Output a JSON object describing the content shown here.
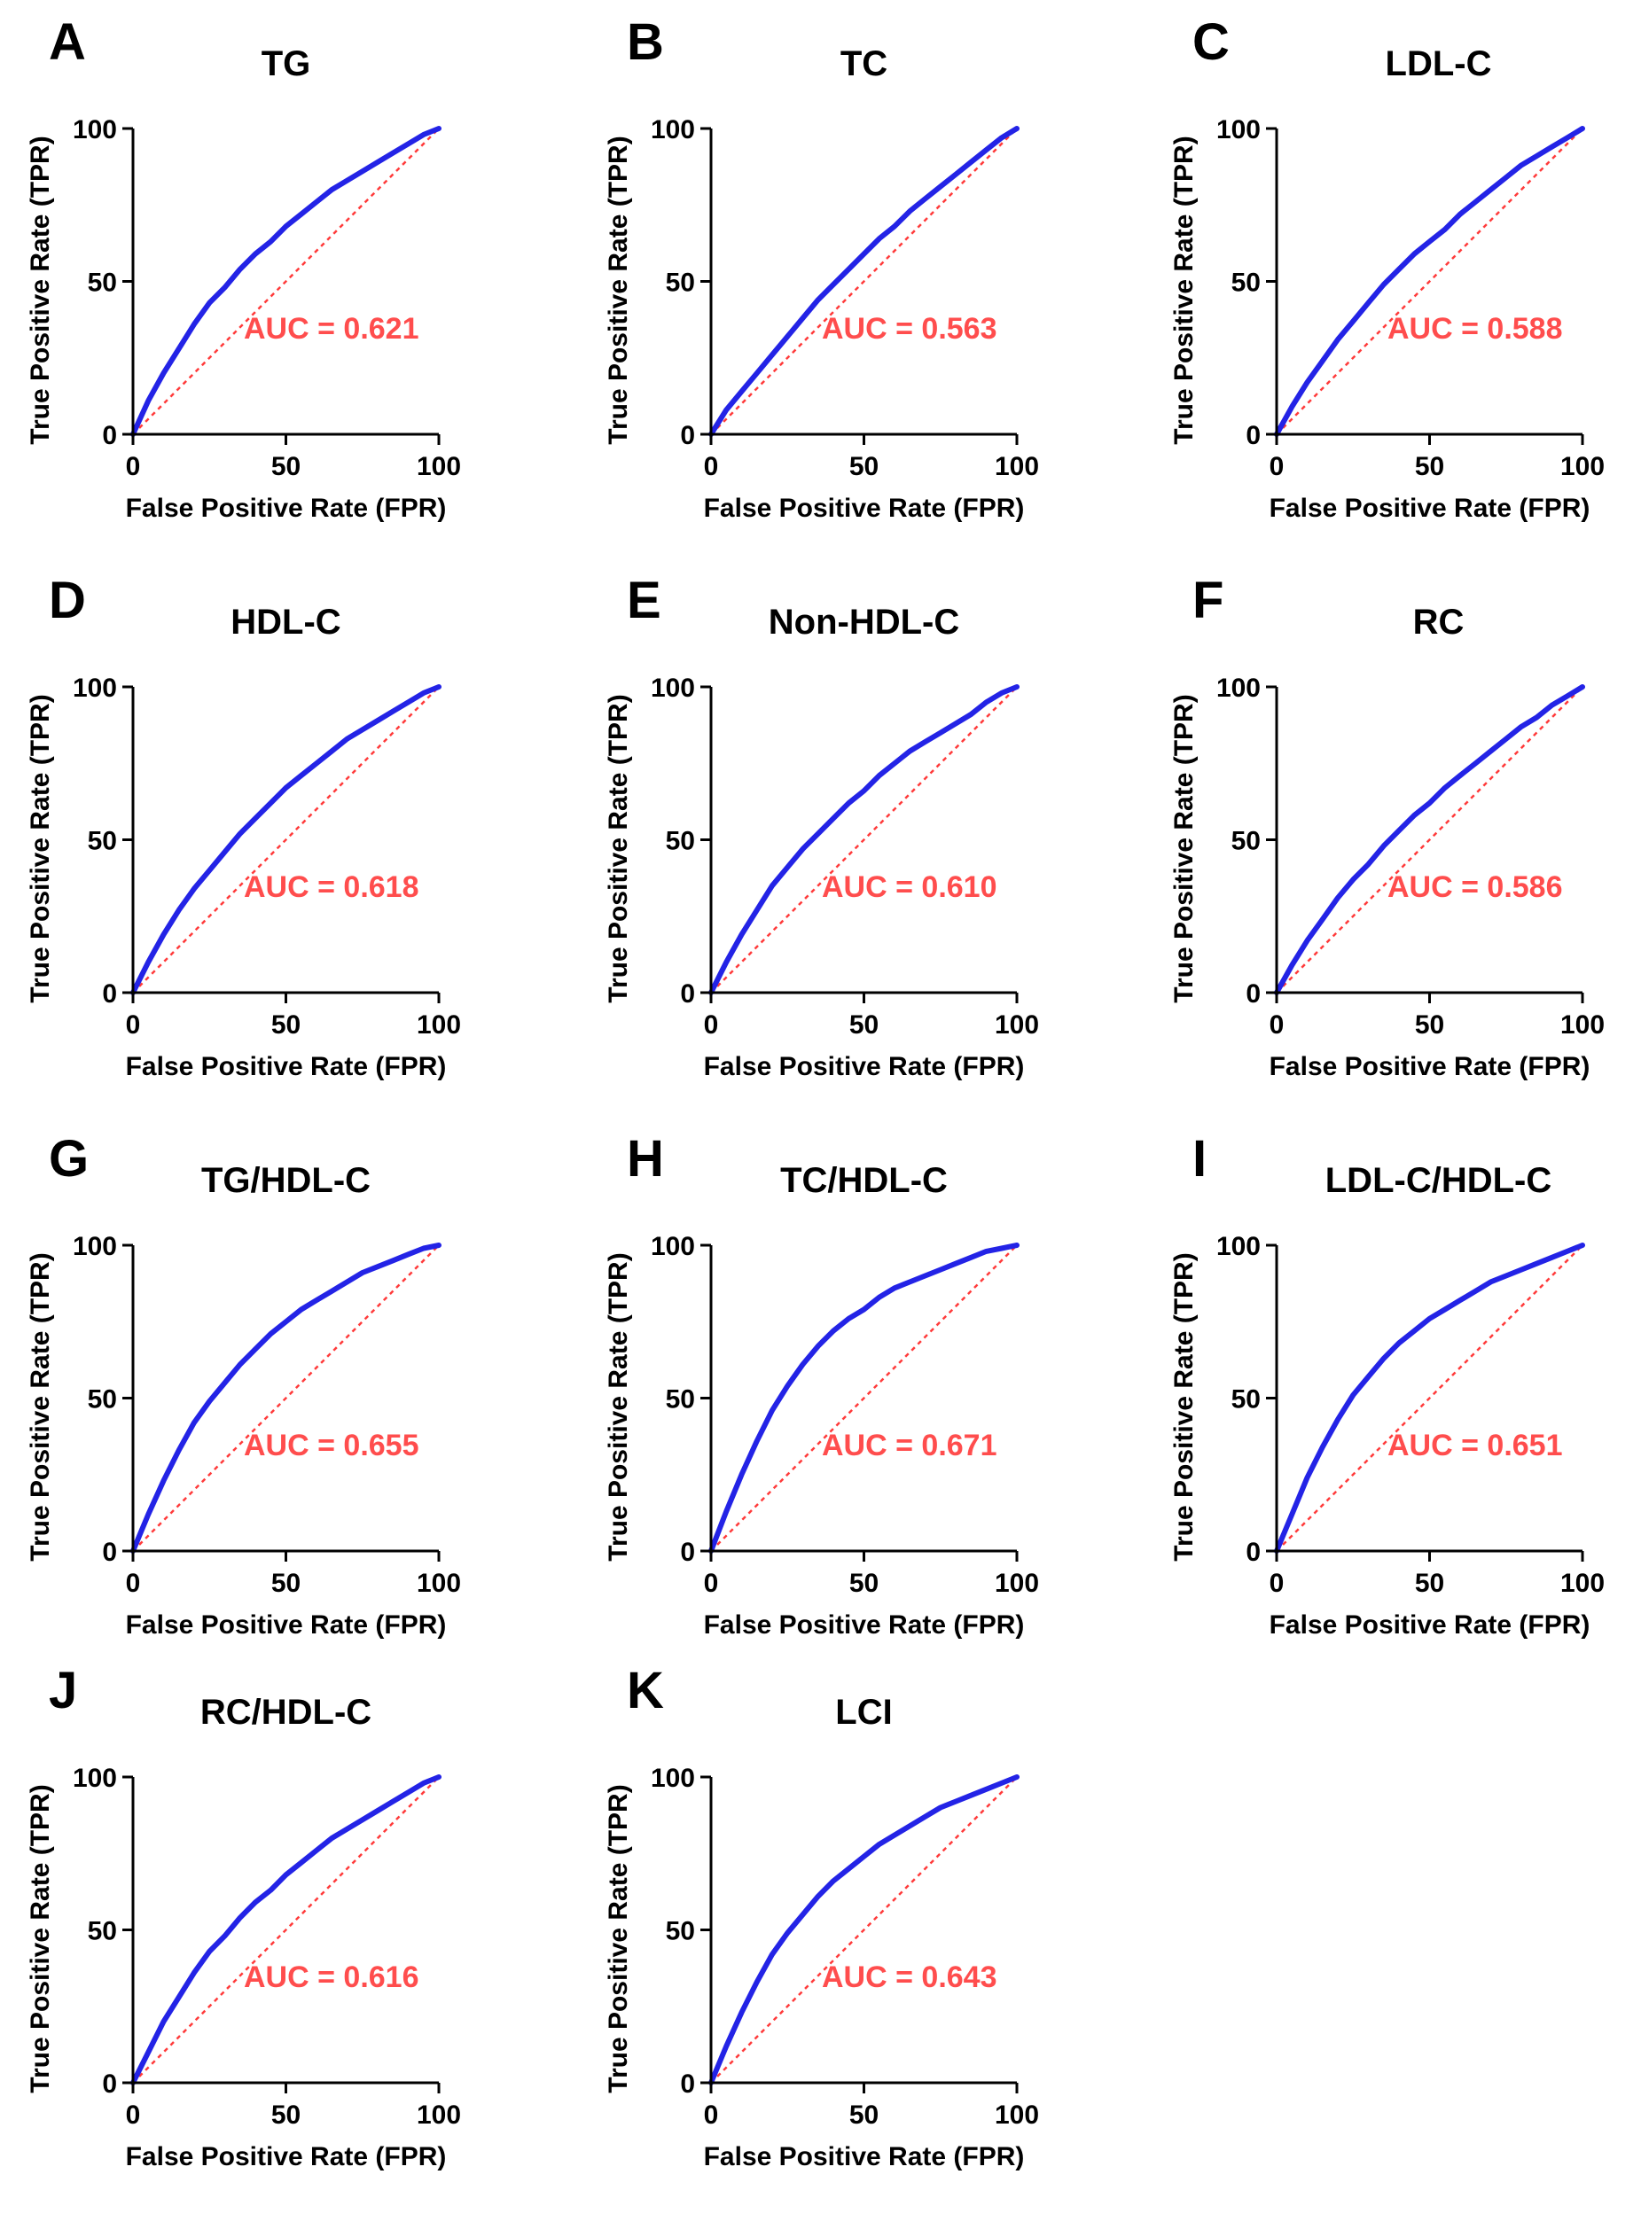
{
  "figure": {
    "xlabel": "False Positive Rate (FPR)",
    "ylabel": "True Positive Rate (TPR)",
    "colors": {
      "roc": "#2323e6",
      "ref": "#ff3b3b",
      "auc": "#ff4d4d",
      "axis": "#000000"
    }
  },
  "chart_data": [
    {
      "type": "line",
      "letter": "A",
      "title": "TG",
      "auc_label": "AUC = 0.621",
      "xlim": [
        0,
        100
      ],
      "ylim": [
        0,
        100
      ],
      "ticks": [
        0,
        50,
        100
      ],
      "series": [
        {
          "name": "ROC",
          "x": [
            0,
            5,
            10,
            15,
            20,
            25,
            30,
            35,
            40,
            45,
            50,
            55,
            60,
            65,
            70,
            75,
            80,
            85,
            90,
            95,
            100
          ],
          "y": [
            0,
            11,
            20,
            28,
            36,
            43,
            48,
            54,
            59,
            63,
            68,
            72,
            76,
            80,
            83,
            86,
            89,
            92,
            95,
            98,
            100
          ]
        },
        {
          "name": "Reference",
          "x": [
            0,
            100
          ],
          "y": [
            0,
            100
          ]
        }
      ]
    },
    {
      "type": "line",
      "letter": "B",
      "title": "TC",
      "auc_label": "AUC = 0.563",
      "xlim": [
        0,
        100
      ],
      "ylim": [
        0,
        100
      ],
      "ticks": [
        0,
        50,
        100
      ],
      "series": [
        {
          "name": "ROC",
          "x": [
            0,
            5,
            10,
            15,
            20,
            25,
            30,
            35,
            40,
            45,
            50,
            55,
            60,
            65,
            70,
            75,
            80,
            85,
            90,
            95,
            100
          ],
          "y": [
            0,
            8,
            14,
            20,
            26,
            32,
            38,
            44,
            49,
            54,
            59,
            64,
            68,
            73,
            77,
            81,
            85,
            89,
            93,
            97,
            100
          ]
        },
        {
          "name": "Reference",
          "x": [
            0,
            100
          ],
          "y": [
            0,
            100
          ]
        }
      ]
    },
    {
      "type": "line",
      "letter": "C",
      "title": "LDL-C",
      "auc_label": "AUC = 0.588",
      "xlim": [
        0,
        100
      ],
      "ylim": [
        0,
        100
      ],
      "ticks": [
        0,
        50,
        100
      ],
      "series": [
        {
          "name": "ROC",
          "x": [
            0,
            5,
            10,
            15,
            20,
            25,
            30,
            35,
            40,
            45,
            50,
            55,
            60,
            65,
            70,
            75,
            80,
            85,
            90,
            95,
            100
          ],
          "y": [
            0,
            9,
            17,
            24,
            31,
            37,
            43,
            49,
            54,
            59,
            63,
            67,
            72,
            76,
            80,
            84,
            88,
            91,
            94,
            97,
            100
          ]
        },
        {
          "name": "Reference",
          "x": [
            0,
            100
          ],
          "y": [
            0,
            100
          ]
        }
      ]
    },
    {
      "type": "line",
      "letter": "D",
      "title": "HDL-C",
      "auc_label": "AUC = 0.618",
      "xlim": [
        0,
        100
      ],
      "ylim": [
        0,
        100
      ],
      "ticks": [
        0,
        50,
        100
      ],
      "series": [
        {
          "name": "ROC",
          "x": [
            0,
            5,
            10,
            15,
            20,
            25,
            30,
            35,
            40,
            45,
            50,
            55,
            60,
            65,
            70,
            75,
            80,
            85,
            90,
            95,
            100
          ],
          "y": [
            0,
            10,
            19,
            27,
            34,
            40,
            46,
            52,
            57,
            62,
            67,
            71,
            75,
            79,
            83,
            86,
            89,
            92,
            95,
            98,
            100
          ]
        },
        {
          "name": "Reference",
          "x": [
            0,
            100
          ],
          "y": [
            0,
            100
          ]
        }
      ]
    },
    {
      "type": "line",
      "letter": "E",
      "title": "Non-HDL-C",
      "auc_label": "AUC = 0.610",
      "xlim": [
        0,
        100
      ],
      "ylim": [
        0,
        100
      ],
      "ticks": [
        0,
        50,
        100
      ],
      "series": [
        {
          "name": "ROC",
          "x": [
            0,
            5,
            10,
            15,
            20,
            25,
            30,
            35,
            40,
            45,
            50,
            55,
            60,
            65,
            70,
            75,
            80,
            85,
            90,
            95,
            100
          ],
          "y": [
            0,
            10,
            19,
            27,
            35,
            41,
            47,
            52,
            57,
            62,
            66,
            71,
            75,
            79,
            82,
            85,
            88,
            91,
            95,
            98,
            100
          ]
        },
        {
          "name": "Reference",
          "x": [
            0,
            100
          ],
          "y": [
            0,
            100
          ]
        }
      ]
    },
    {
      "type": "line",
      "letter": "F",
      "title": "RC",
      "auc_label": "AUC = 0.586",
      "xlim": [
        0,
        100
      ],
      "ylim": [
        0,
        100
      ],
      "ticks": [
        0,
        50,
        100
      ],
      "series": [
        {
          "name": "ROC",
          "x": [
            0,
            5,
            10,
            15,
            20,
            25,
            30,
            35,
            40,
            45,
            50,
            55,
            60,
            65,
            70,
            75,
            80,
            85,
            90,
            95,
            100
          ],
          "y": [
            0,
            9,
            17,
            24,
            31,
            37,
            42,
            48,
            53,
            58,
            62,
            67,
            71,
            75,
            79,
            83,
            87,
            90,
            94,
            97,
            100
          ]
        },
        {
          "name": "Reference",
          "x": [
            0,
            100
          ],
          "y": [
            0,
            100
          ]
        }
      ]
    },
    {
      "type": "line",
      "letter": "G",
      "title": "TG/HDL-C",
      "auc_label": "AUC = 0.655",
      "xlim": [
        0,
        100
      ],
      "ylim": [
        0,
        100
      ],
      "ticks": [
        0,
        50,
        100
      ],
      "series": [
        {
          "name": "ROC",
          "x": [
            0,
            5,
            10,
            15,
            20,
            25,
            30,
            35,
            40,
            45,
            50,
            55,
            60,
            65,
            70,
            75,
            80,
            85,
            90,
            95,
            100
          ],
          "y": [
            0,
            12,
            23,
            33,
            42,
            49,
            55,
            61,
            66,
            71,
            75,
            79,
            82,
            85,
            88,
            91,
            93,
            95,
            97,
            99,
            100
          ]
        },
        {
          "name": "Reference",
          "x": [
            0,
            100
          ],
          "y": [
            0,
            100
          ]
        }
      ]
    },
    {
      "type": "line",
      "letter": "H",
      "title": "TC/HDL-C",
      "auc_label": "AUC = 0.671",
      "xlim": [
        0,
        100
      ],
      "ylim": [
        0,
        100
      ],
      "ticks": [
        0,
        50,
        100
      ],
      "series": [
        {
          "name": "ROC",
          "x": [
            0,
            5,
            10,
            15,
            20,
            25,
            30,
            35,
            40,
            45,
            50,
            55,
            60,
            65,
            70,
            75,
            80,
            85,
            90,
            95,
            100
          ],
          "y": [
            0,
            13,
            25,
            36,
            46,
            54,
            61,
            67,
            72,
            76,
            79,
            83,
            86,
            88,
            90,
            92,
            94,
            96,
            98,
            99,
            100
          ]
        },
        {
          "name": "Reference",
          "x": [
            0,
            100
          ],
          "y": [
            0,
            100
          ]
        }
      ]
    },
    {
      "type": "line",
      "letter": "I",
      "title": "LDL-C/HDL-C",
      "auc_label": "AUC = 0.651",
      "xlim": [
        0,
        100
      ],
      "ylim": [
        0,
        100
      ],
      "ticks": [
        0,
        50,
        100
      ],
      "series": [
        {
          "name": "ROC",
          "x": [
            0,
            5,
            10,
            15,
            20,
            25,
            30,
            35,
            40,
            45,
            50,
            55,
            60,
            65,
            70,
            75,
            80,
            85,
            90,
            95,
            100
          ],
          "y": [
            0,
            12,
            24,
            34,
            43,
            51,
            57,
            63,
            68,
            72,
            76,
            79,
            82,
            85,
            88,
            90,
            92,
            94,
            96,
            98,
            100
          ]
        },
        {
          "name": "Reference",
          "x": [
            0,
            100
          ],
          "y": [
            0,
            100
          ]
        }
      ]
    },
    {
      "type": "line",
      "letter": "J",
      "title": "RC/HDL-C",
      "auc_label": "AUC = 0.616",
      "xlim": [
        0,
        100
      ],
      "ylim": [
        0,
        100
      ],
      "ticks": [
        0,
        50,
        100
      ],
      "series": [
        {
          "name": "ROC",
          "x": [
            0,
            5,
            10,
            15,
            20,
            25,
            30,
            35,
            40,
            45,
            50,
            55,
            60,
            65,
            70,
            75,
            80,
            85,
            90,
            95,
            100
          ],
          "y": [
            0,
            10,
            20,
            28,
            36,
            43,
            48,
            54,
            59,
            63,
            68,
            72,
            76,
            80,
            83,
            86,
            89,
            92,
            95,
            98,
            100
          ]
        },
        {
          "name": "Reference",
          "x": [
            0,
            100
          ],
          "y": [
            0,
            100
          ]
        }
      ]
    },
    {
      "type": "line",
      "letter": "K",
      "title": "LCI",
      "auc_label": "AUC = 0.643",
      "xlim": [
        0,
        100
      ],
      "ylim": [
        0,
        100
      ],
      "ticks": [
        0,
        50,
        100
      ],
      "series": [
        {
          "name": "ROC",
          "x": [
            0,
            5,
            10,
            15,
            20,
            25,
            30,
            35,
            40,
            45,
            50,
            55,
            60,
            65,
            70,
            75,
            80,
            85,
            90,
            95,
            100
          ],
          "y": [
            0,
            12,
            23,
            33,
            42,
            49,
            55,
            61,
            66,
            70,
            74,
            78,
            81,
            84,
            87,
            90,
            92,
            94,
            96,
            98,
            100
          ]
        },
        {
          "name": "Reference",
          "x": [
            0,
            100
          ],
          "y": [
            0,
            100
          ]
        }
      ]
    }
  ]
}
